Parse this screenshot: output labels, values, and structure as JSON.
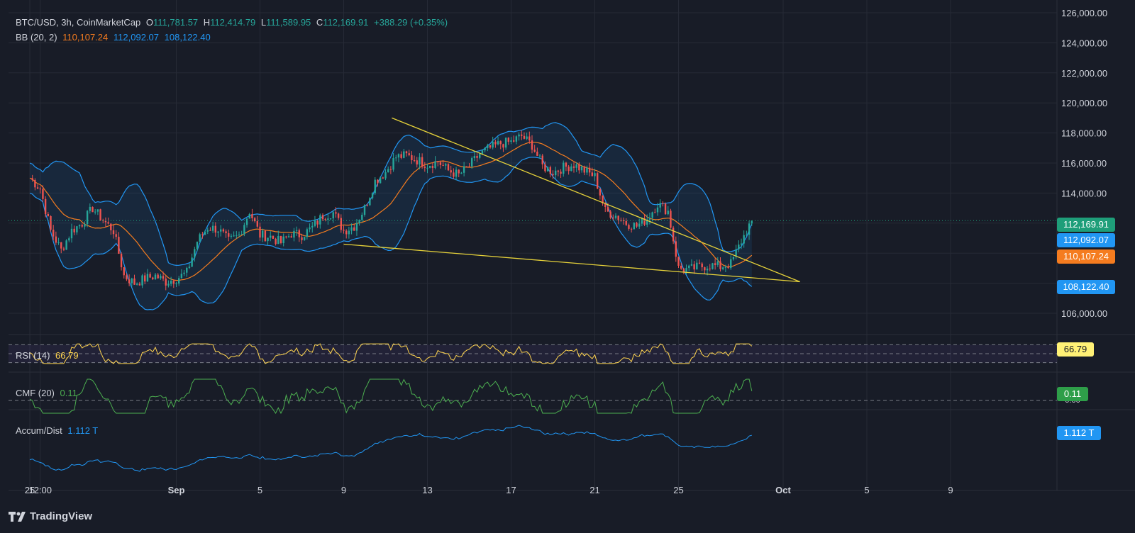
{
  "legend": {
    "symbol": "BTC/USD, 3h, CoinMarketCap",
    "o_label": "O",
    "o_value": "111,781.57",
    "h_label": "H",
    "h_value": "112,414.79",
    "l_label": "L",
    "l_value": "111,589.95",
    "c_label": "C",
    "c_value": "112,169.91",
    "change": "+388.29 (+0.35%)",
    "bb_label": "BB (20, 2)",
    "bb_mid": "110,107.24",
    "bb_upper": "112,092.07",
    "bb_lower": "108,122.40",
    "rsi_label": "RSI (14)",
    "rsi_value": "66.79",
    "cmf_label": "CMF (20)",
    "cmf_value": "0.11",
    "ad_label": "Accum/Dist",
    "ad_value": "1.112 T"
  },
  "badges": {
    "price": "112,169.91",
    "upper": "112,092.07",
    "mid": "110,107.24",
    "lower": "108,122.40",
    "rsi": "66.79",
    "cmf": "0.11",
    "ad": "1.112 T",
    "cmf_zero_hidden": "0.00"
  },
  "brand": {
    "name": "TradingView"
  },
  "colors": {
    "bg": "#181c27",
    "grid": "#262a36",
    "up": "#26a69a",
    "down": "#ef5350",
    "bb_upper": "#2196f3",
    "bb_lower": "#2196f3",
    "bb_mid": "#f57c1f",
    "rsi": "#ffd54f",
    "cmf": "#4caf50",
    "ad": "#2196f3",
    "trend": "#e6d23a",
    "price_badge": "#1e9e79",
    "rsi_badge": "#fff176"
  },
  "chart_data": {
    "type": "candlestick",
    "title": "BTC/USD, 3h, CoinMarketCap",
    "y_axis": {
      "ticks": [
        "126,000.00",
        "124,000.00",
        "122,000.00",
        "120,000.00",
        "118,000.00",
        "116,000.00",
        "114,000.00",
        "112,000.00",
        "110,000.00",
        "108,000.00",
        "106,000.00"
      ],
      "range": [
        105000,
        127000
      ]
    },
    "x_axis": {
      "ticks": [
        "25",
        "12:00",
        "Sep",
        "5",
        "9",
        "13",
        "17",
        "21",
        "25",
        "Oct",
        "5",
        "9"
      ],
      "tick_days": [
        0,
        0.5,
        7,
        11,
        15,
        19,
        23,
        27,
        31,
        36,
        40,
        44
      ],
      "start": "Aug 25",
      "end": "Oct 12"
    },
    "price_anchors": [
      [
        0,
        115000
      ],
      [
        0.5,
        114300
      ],
      [
        1,
        111500
      ],
      [
        1.5,
        110200
      ],
      [
        2,
        111500
      ],
      [
        2.5,
        112000
      ],
      [
        3,
        113000
      ],
      [
        3.5,
        112200
      ],
      [
        4,
        111500
      ],
      [
        4.5,
        108500
      ],
      [
        5,
        108000
      ],
      [
        5.5,
        108300
      ],
      [
        6,
        108500
      ],
      [
        6.5,
        108100
      ],
      [
        7,
        108300
      ],
      [
        7.5,
        108700
      ],
      [
        8,
        110800
      ],
      [
        8.5,
        111700
      ],
      [
        9,
        111600
      ],
      [
        9.5,
        110800
      ],
      [
        10,
        111200
      ],
      [
        10.5,
        112800
      ],
      [
        11,
        111200
      ],
      [
        11.5,
        111100
      ],
      [
        12,
        110700
      ],
      [
        12.5,
        111300
      ],
      [
        13,
        111200
      ],
      [
        13.5,
        111700
      ],
      [
        14,
        112500
      ],
      [
        14.5,
        112700
      ],
      [
        15,
        111500
      ],
      [
        15.5,
        111800
      ],
      [
        16,
        113000
      ],
      [
        16.5,
        114800
      ],
      [
        17,
        115400
      ],
      [
        17.5,
        116400
      ],
      [
        18,
        116500
      ],
      [
        18.5,
        116200
      ],
      [
        19,
        115900
      ],
      [
        19.5,
        116100
      ],
      [
        20,
        115500
      ],
      [
        20.5,
        115200
      ],
      [
        21,
        115800
      ],
      [
        21.5,
        116600
      ],
      [
        22,
        117000
      ],
      [
        22.5,
        117300
      ],
      [
        23,
        117400
      ],
      [
        23.5,
        117800
      ],
      [
        24,
        117200
      ],
      [
        24.5,
        115800
      ],
      [
        25,
        115400
      ],
      [
        25.5,
        115700
      ],
      [
        26,
        115900
      ],
      [
        26.5,
        115500
      ],
      [
        27,
        115100
      ],
      [
        27.5,
        112800
      ],
      [
        28,
        112500
      ],
      [
        28.5,
        112000
      ],
      [
        29,
        111800
      ],
      [
        29.5,
        112300
      ],
      [
        30,
        113300
      ],
      [
        30.5,
        112800
      ],
      [
        31,
        109000
      ],
      [
        31.5,
        108900
      ],
      [
        32,
        109100
      ],
      [
        32.5,
        109200
      ],
      [
        33,
        109100
      ],
      [
        33.5,
        109300
      ],
      [
        34,
        110800
      ],
      [
        34.5,
        112170
      ]
    ],
    "end_day": 34.5,
    "series": [
      {
        "name": "BB (20, 2)",
        "values_last": [
          110107.24,
          112092.07,
          108122.4
        ]
      },
      {
        "name": "RSI (14)",
        "last": 66.79,
        "levels": [
          70,
          50,
          30
        ]
      },
      {
        "name": "CMF (20)",
        "last": 0.11,
        "zero": 0
      },
      {
        "name": "Accum/Dist",
        "last": "1.112 T"
      }
    ],
    "trendlines": [
      {
        "from": [
          17.3,
          119000
        ],
        "to": [
          36.8,
          108100
        ]
      },
      {
        "from": [
          15,
          110600
        ],
        "to": [
          36.8,
          108100
        ]
      }
    ],
    "grid": true
  }
}
